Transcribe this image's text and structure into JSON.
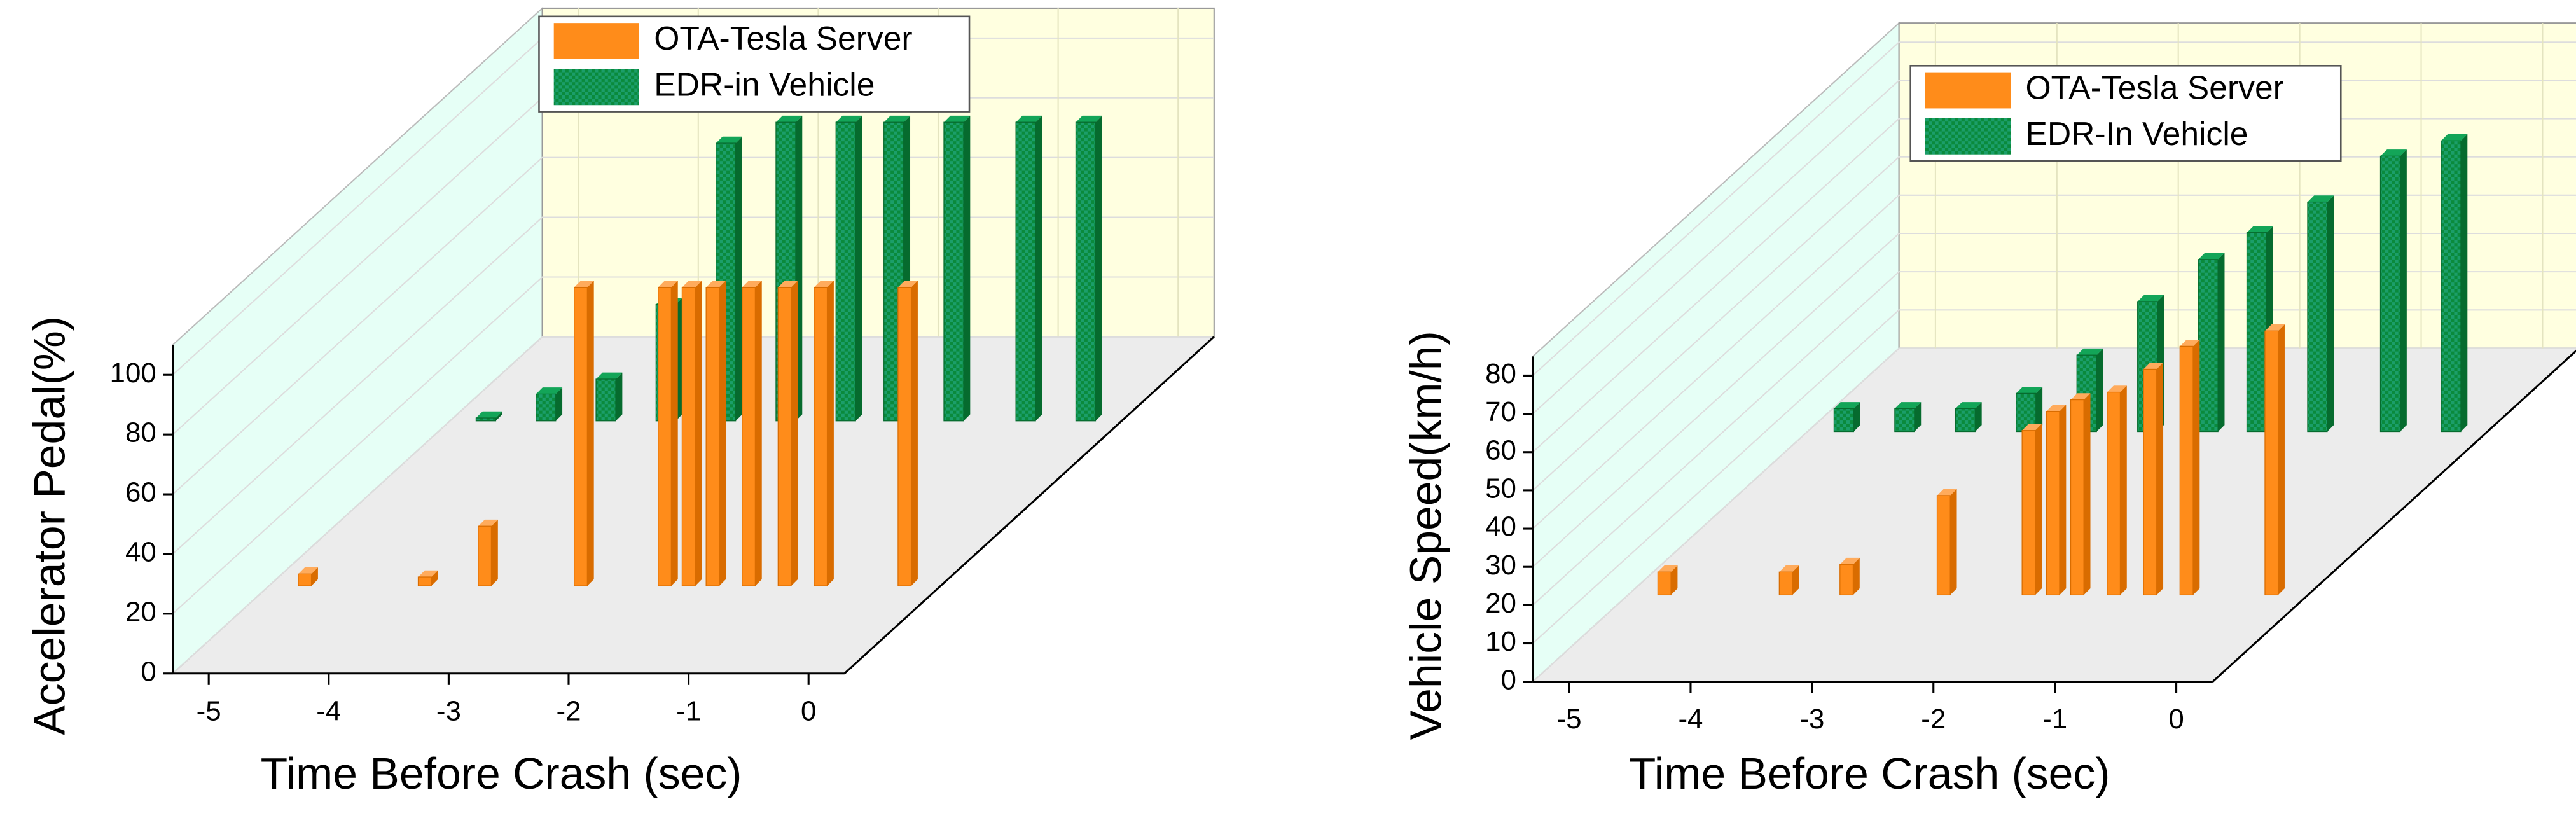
{
  "chart_data": [
    {
      "type": "bar3d",
      "x_label": "Time Before Crash (sec)",
      "y_label": "Accelerator Pedal(%)",
      "xlim": [
        -5.3,
        0.3
      ],
      "xticks": [
        -5,
        -4,
        -3,
        -2,
        -1,
        0
      ],
      "ylim": [
        0,
        110
      ],
      "yticks": [
        0,
        20,
        40,
        60,
        80,
        100
      ],
      "grid": true,
      "series": [
        {
          "name": "OTA-Tesla Server",
          "color": "#ff8c1a",
          "x": [
            -5,
            -4,
            -3.5,
            -2.7,
            -2,
            -1.8,
            -1.6,
            -1.3,
            -1,
            -0.7,
            0
          ],
          "values": [
            4,
            3,
            20,
            100,
            100,
            100,
            100,
            100,
            100,
            100,
            100
          ]
        },
        {
          "name": "EDR-in Vehicle",
          "color": "#0a8a3c",
          "x": [
            -5,
            -4.5,
            -4,
            -3.5,
            -3,
            -2.5,
            -2,
            -1.6,
            -1.1,
            -0.5,
            0
          ],
          "values": [
            1,
            9,
            14,
            39,
            93,
            100,
            100,
            100,
            100,
            100,
            100
          ]
        }
      ]
    },
    {
      "type": "bar3d",
      "x_label": "Time Before Crash (sec)",
      "y_label": "Vehicle Speed(km/h)",
      "xlim": [
        -5.3,
        0.3
      ],
      "xticks": [
        -5,
        -4,
        -3,
        -2,
        -1,
        0
      ],
      "ylim": [
        0,
        85
      ],
      "yticks": [
        0,
        10,
        20,
        30,
        40,
        50,
        60,
        70,
        80
      ],
      "grid": true,
      "series": [
        {
          "name": "OTA-Tesla Server",
          "color": "#ff8c1a",
          "x": [
            -5,
            -4,
            -3.5,
            -2.7,
            -2,
            -1.8,
            -1.6,
            -1.3,
            -1,
            -0.7,
            0
          ],
          "values": [
            6,
            6,
            8,
            26,
            43,
            48,
            51,
            53,
            59,
            65,
            69
          ]
        },
        {
          "name": "EDR-In Vehicle",
          "color": "#0a8a3c",
          "x": [
            -5,
            -4.5,
            -4,
            -3.5,
            -3,
            -2.5,
            -2,
            -1.6,
            -1.1,
            -0.5,
            0
          ],
          "values": [
            6,
            6,
            6,
            10,
            20,
            34,
            45,
            52,
            60,
            72,
            76
          ]
        }
      ]
    }
  ]
}
